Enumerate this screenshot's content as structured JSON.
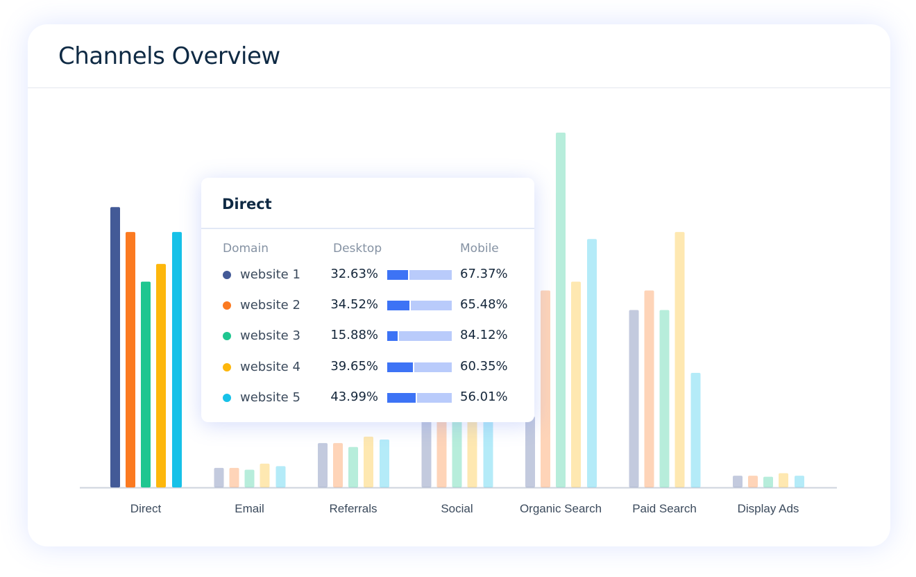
{
  "title": "Channels Overview",
  "chart_data": {
    "type": "bar",
    "title": "Channels Overview",
    "categories": [
      "Direct",
      "Email",
      "Referrals",
      "Social",
      "Organic Search",
      "Paid Search",
      "Display Ads"
    ],
    "series": [
      {
        "name": "website 1",
        "color": "#435a97",
        "values": [
          79,
          5.5,
          12.5,
          22,
          20,
          50,
          3.3
        ]
      },
      {
        "name": "website 2",
        "color": "#fb7a21",
        "values": [
          72,
          5.5,
          12.5,
          22,
          55.5,
          55.5,
          3.3
        ]
      },
      {
        "name": "website 3",
        "color": "#1fc690",
        "values": [
          58,
          5,
          11.4,
          22,
          100,
          50,
          3
        ]
      },
      {
        "name": "website 4",
        "color": "#fdb70c",
        "values": [
          63,
          6.7,
          14.3,
          22,
          58,
          72,
          4
        ]
      },
      {
        "name": "website 5",
        "color": "#17c1e8",
        "values": [
          72,
          6,
          13.5,
          22,
          70,
          32.3,
          3.3
        ]
      }
    ],
    "highlighted_category": "Direct",
    "y_axis_shown": false,
    "grid": false,
    "ylim": [
      0,
      100
    ]
  },
  "tooltip": {
    "title": "Direct",
    "headers": {
      "domain": "Domain",
      "desktop": "Desktop",
      "mobile": "Mobile"
    },
    "rows": [
      {
        "name": "website 1",
        "color": "#435a97",
        "desktop": "32.63%",
        "mobile": "67.37%",
        "desktop_value": 32.63
      },
      {
        "name": "website 2",
        "color": "#fb7a21",
        "desktop": "34.52%",
        "mobile": "65.48%",
        "desktop_value": 34.52
      },
      {
        "name": "website 3",
        "color": "#1fc690",
        "desktop": "15.88%",
        "mobile": "84.12%",
        "desktop_value": 15.88
      },
      {
        "name": "website 4",
        "color": "#fdb70c",
        "desktop": "39.65%",
        "mobile": "60.35%",
        "desktop_value": 39.65
      },
      {
        "name": "website 5",
        "color": "#17c1e8",
        "desktop": "43.99%",
        "mobile": "56.01%",
        "desktop_value": 43.99
      }
    ],
    "desktop_color": "#3d73f5",
    "mobile_color": "#b9cbfb"
  }
}
